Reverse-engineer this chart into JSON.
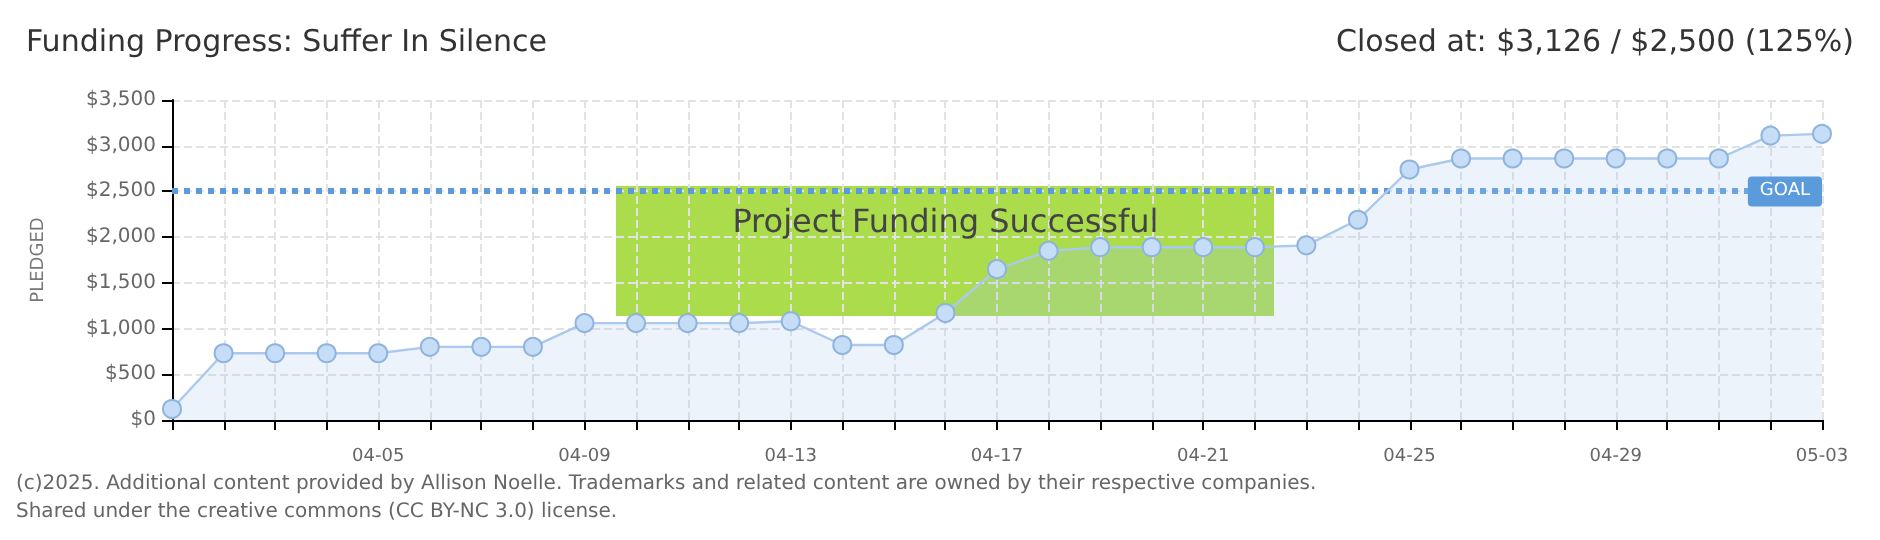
{
  "chart_data": {
    "type": "area",
    "title": "Funding Progress: Suffer In Silence",
    "subtitle": "Closed at: $3,126 / $2,500 (125%)",
    "ylabel": "PLEDGED",
    "categories": [
      null,
      null,
      null,
      null,
      "04-05",
      null,
      null,
      null,
      "04-09",
      null,
      null,
      null,
      "04-13",
      null,
      null,
      null,
      "04-17",
      null,
      null,
      null,
      "04-21",
      null,
      null,
      null,
      "04-25",
      null,
      null,
      null,
      "04-29",
      null,
      null,
      null,
      "05-03"
    ],
    "series": [
      {
        "color": "#a9c9ee",
        "values": [
          120,
          730,
          730,
          730,
          730,
          800,
          800,
          800,
          1060,
          1060,
          1060,
          1060,
          1080,
          820,
          820,
          1170,
          1650,
          1850,
          1890,
          1890,
          1890,
          1890,
          1910,
          2190,
          2740,
          2860,
          2860,
          2860,
          2860,
          2860,
          2860,
          3110,
          3130
        ]
      }
    ],
    "ylim": [
      0,
      3500
    ],
    "yticks": [
      {
        "value": 0,
        "label": "$0"
      },
      {
        "value": 500,
        "label": "$500"
      },
      {
        "value": 1000,
        "label": "$1,000"
      },
      {
        "value": 1500,
        "label": "$1,500"
      },
      {
        "value": 2000,
        "label": "$2,000"
      },
      {
        "value": 2500,
        "label": "$2,500"
      },
      {
        "value": 3000,
        "label": "$3,000"
      },
      {
        "value": 3500,
        "label": "$3,500"
      }
    ],
    "ref_lines": [
      {
        "axis": "y",
        "value": 2500,
        "label": "GOAL",
        "color": "#5b9bdc",
        "line_style": "dotted"
      }
    ],
    "grid": true,
    "marker": "circle",
    "annotations": [
      "Project Funding Successful",
      "(c)2025. Additional content provided by Allison Noelle. Trademarks and related content are owned by their respective companies.",
      "Shared under the creative commons (CC BY-NC 3.0) license."
    ]
  }
}
